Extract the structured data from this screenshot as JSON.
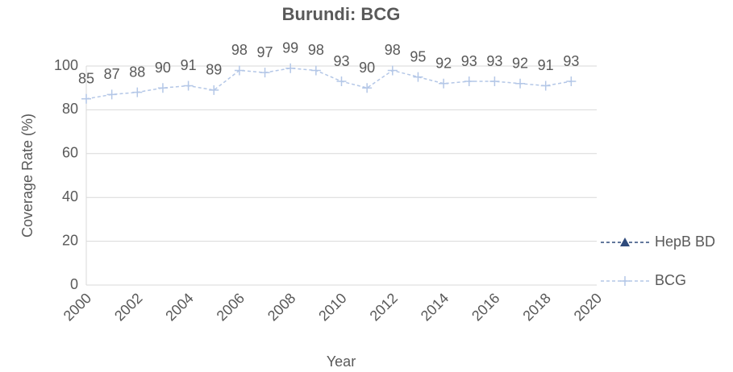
{
  "chart_data": {
    "type": "line",
    "title": "Burundi: BCG",
    "x_label": "Year",
    "y_label": "Coverage Rate (%)",
    "x": [
      2000,
      2001,
      2002,
      2003,
      2004,
      2005,
      2006,
      2007,
      2008,
      2009,
      2010,
      2011,
      2012,
      2013,
      2014,
      2015,
      2016,
      2017,
      2018,
      2019
    ],
    "series": [
      {
        "name": "HepB BD",
        "color": "#2f4b7c",
        "marker": "triangle",
        "values": [
          null,
          null,
          null,
          null,
          null,
          null,
          null,
          null,
          null,
          null,
          null,
          null,
          null,
          null,
          null,
          null,
          null,
          null,
          null,
          null
        ]
      },
      {
        "name": "BCG",
        "color": "#b4c7e7",
        "marker": "plus",
        "values": [
          85,
          87,
          88,
          90,
          91,
          89,
          98,
          97,
          99,
          98,
          93,
          90,
          98,
          95,
          92,
          93,
          93,
          92,
          91,
          93
        ]
      }
    ],
    "xlim": [
      2000,
      2020
    ],
    "xticks": [
      2000,
      2002,
      2004,
      2006,
      2008,
      2010,
      2012,
      2014,
      2016,
      2018,
      2020
    ],
    "ylim": [
      0,
      100
    ],
    "yticks": [
      0,
      20,
      40,
      60,
      80,
      100
    ],
    "grid": true,
    "legend": "right",
    "data_labels": true
  }
}
